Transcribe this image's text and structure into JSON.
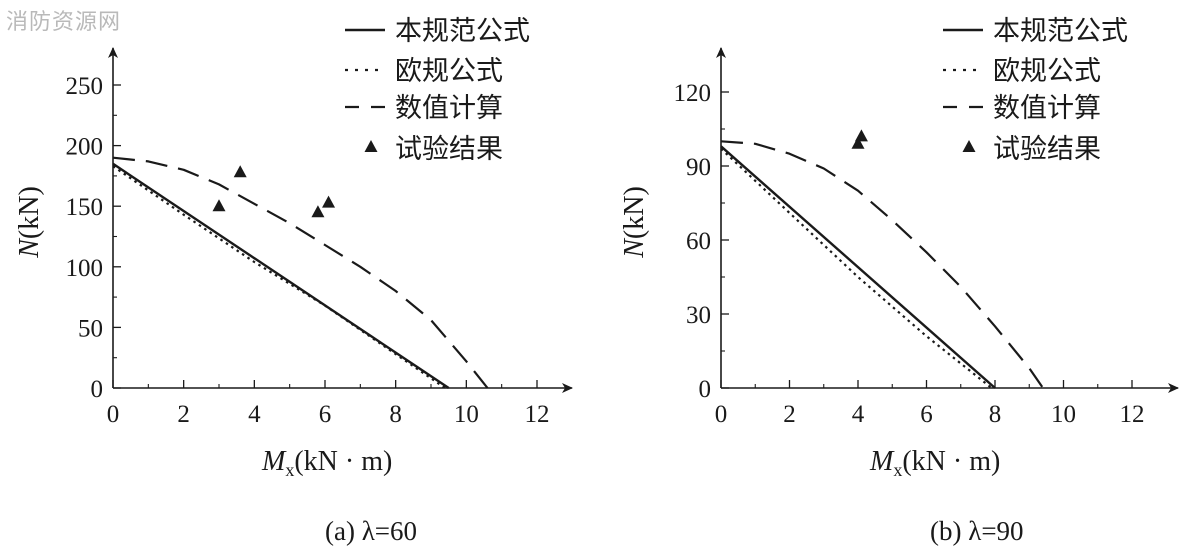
{
  "watermark": "消防资源网",
  "colors": {
    "ink": "#1a1a1a",
    "watermark": "#b9b9b9"
  },
  "chart_data": [
    {
      "type": "line",
      "caption": "(a) λ=60",
      "xlabel_main": "M",
      "xlabel_sub": "x",
      "xlabel_unit": "(kN · m)",
      "ylabel_main": "N",
      "ylabel_unit": "(kN)",
      "xlim": [
        0,
        12
      ],
      "ylim": [
        0,
        250
      ],
      "xticks": [
        0,
        2,
        4,
        6,
        8,
        10,
        12
      ],
      "yticks": [
        0,
        50,
        100,
        150,
        200,
        250
      ],
      "grid": false,
      "legend_position": "top-right",
      "series": [
        {
          "name": "本规范公式",
          "style": "solid",
          "x": [
            0,
            9.5
          ],
          "y": [
            185,
            0
          ]
        },
        {
          "name": "欧规公式",
          "style": "dotted",
          "x": [
            0,
            2,
            4,
            6,
            8,
            9.4
          ],
          "y": [
            183,
            143,
            104,
            68,
            28,
            0
          ]
        },
        {
          "name": "数值计算",
          "style": "dashed",
          "x": [
            0,
            1,
            2,
            3,
            4,
            5,
            6,
            7,
            8,
            9,
            10,
            10.6
          ],
          "y": [
            190,
            187,
            180,
            168,
            152,
            136,
            118,
            100,
            80,
            56,
            22,
            0
          ]
        },
        {
          "name": "试验结果",
          "style": "markers",
          "x": [
            3.0,
            3.6,
            5.8,
            6.1
          ],
          "y": [
            150,
            178,
            145,
            153
          ]
        }
      ]
    },
    {
      "type": "line",
      "caption": "(b) λ=90",
      "xlabel_main": "M",
      "xlabel_sub": "x",
      "xlabel_unit": "(kN · m)",
      "ylabel_main": "N",
      "ylabel_unit": "(kN)",
      "xlim": [
        0,
        12
      ],
      "ylim": [
        0,
        120
      ],
      "xticks": [
        0,
        2,
        4,
        6,
        8,
        10,
        12
      ],
      "yticks": [
        0,
        30,
        60,
        90,
        120
      ],
      "grid": false,
      "legend_position": "top-right",
      "series": [
        {
          "name": "本规范公式",
          "style": "solid",
          "x": [
            0,
            8.0
          ],
          "y": [
            98,
            0
          ]
        },
        {
          "name": "欧规公式",
          "style": "dotted",
          "x": [
            0,
            2,
            4,
            6,
            7.9
          ],
          "y": [
            97,
            71,
            45,
            21,
            0
          ]
        },
        {
          "name": "数值计算",
          "style": "dashed",
          "x": [
            0,
            1,
            2,
            3,
            4,
            5,
            6,
            7,
            8,
            9,
            9.4
          ],
          "y": [
            100,
            99,
            95,
            89,
            80,
            68,
            55,
            41,
            25,
            8,
            0
          ]
        },
        {
          "name": "试验结果",
          "style": "markers",
          "x": [
            4.0,
            4.1
          ],
          "y": [
            99,
            102
          ]
        }
      ]
    }
  ]
}
